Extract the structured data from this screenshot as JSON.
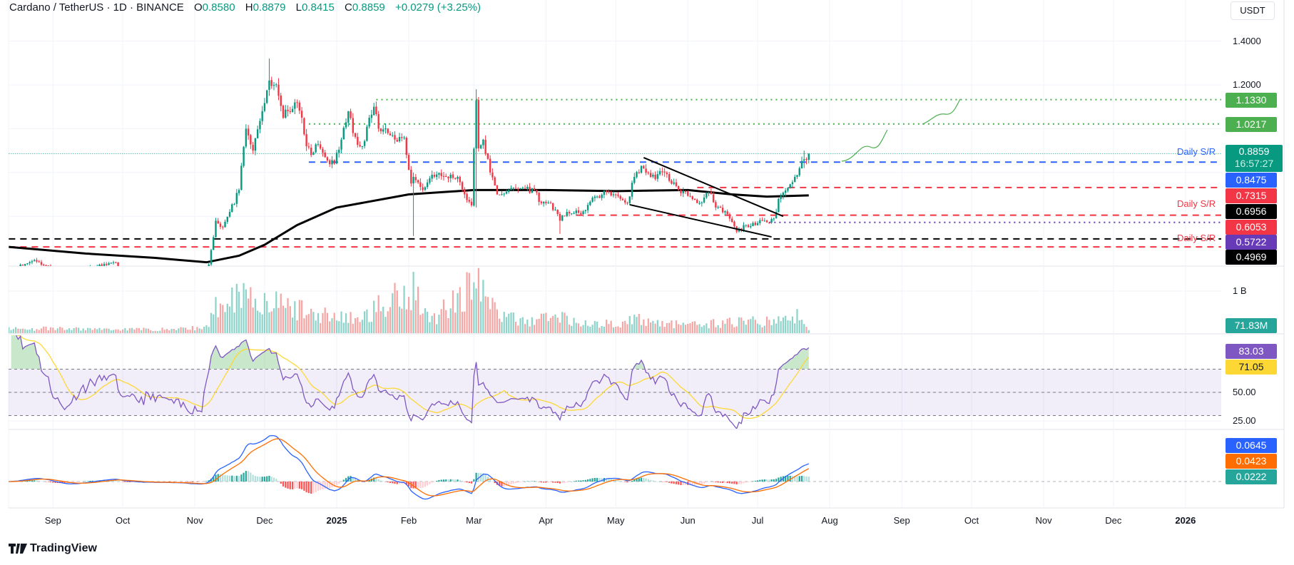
{
  "header": {
    "symbol": "Cardano / TetherUS · 1D · BINANCE",
    "o_label": "O",
    "o": "0.8580",
    "h_label": "H",
    "h": "0.8879",
    "l_label": "L",
    "l": "0.8415",
    "c_label": "C",
    "c": "0.8859",
    "change": "+0.0279 (+3.25%)"
  },
  "axis": {
    "currency": "USDT",
    "price_ticks": [
      "1.4000",
      "1.2000"
    ],
    "volume_tick": "1 B",
    "rsi_ticks": [
      "50.00",
      "25.00"
    ],
    "time_ticks": [
      {
        "label": "Sep",
        "date": "2024-09-01",
        "bold": false
      },
      {
        "label": "Oct",
        "date": "2024-10-01",
        "bold": false
      },
      {
        "label": "Nov",
        "date": "2024-11-01",
        "bold": false
      },
      {
        "label": "Dec",
        "date": "2024-12-01",
        "bold": false
      },
      {
        "label": "2025",
        "date": "2025-01-01",
        "bold": true
      },
      {
        "label": "Feb",
        "date": "2025-02-01",
        "bold": false
      },
      {
        "label": "Mar",
        "date": "2025-03-01",
        "bold": false
      },
      {
        "label": "Apr",
        "date": "2025-04-01",
        "bold": false
      },
      {
        "label": "May",
        "date": "2025-05-01",
        "bold": false
      },
      {
        "label": "Jun",
        "date": "2025-06-01",
        "bold": false
      },
      {
        "label": "Jul",
        "date": "2025-07-01",
        "bold": false
      },
      {
        "label": "Aug",
        "date": "2025-08-01",
        "bold": false
      },
      {
        "label": "Sep",
        "date": "2025-09-01",
        "bold": false
      },
      {
        "label": "Oct",
        "date": "2025-10-01",
        "bold": false
      },
      {
        "label": "Nov",
        "date": "2025-11-01",
        "bold": false
      },
      {
        "label": "Dec",
        "date": "2025-12-01",
        "bold": false
      },
      {
        "label": "2026",
        "date": "2026-01-01",
        "bold": true
      }
    ]
  },
  "price_labels": [
    {
      "value": "1.1330",
      "color": "#4caf50"
    },
    {
      "value": "1.0217",
      "color": "#4caf50"
    },
    {
      "value": "0.8475",
      "color": "#2962ff"
    },
    {
      "value": "0.7315",
      "color": "#f23645"
    },
    {
      "value": "0.6956",
      "color": "#000000"
    },
    {
      "value": "0.6053",
      "color": "#f23645"
    },
    {
      "value": "0.5722",
      "color": "#673ab7"
    },
    {
      "value": "0.4969",
      "color": "#000000"
    }
  ],
  "current_price": {
    "value": "0.8859",
    "countdown": "16:57:27",
    "color": "#089981"
  },
  "annotations": [
    {
      "text": "Daily S/R",
      "color": "#2962ff"
    },
    {
      "text": "Daily S/R",
      "color": "#f23645"
    },
    {
      "text": "Daily S/R",
      "color": "#f23645"
    }
  ],
  "indicators": {
    "volume": {
      "value": "71.83M",
      "color": "#26a69a"
    },
    "rsi": {
      "value": "83.03",
      "color": "#7e57c2"
    },
    "rsi_ma": {
      "value": "71.05",
      "color": "#fdd835"
    },
    "macd": {
      "value": "0.0645",
      "color": "#2962ff"
    },
    "signal": {
      "value": "0.0423",
      "color": "#ff6d00"
    },
    "histogram": {
      "value": "0.0222",
      "color": "#26a69a"
    }
  },
  "footer": {
    "logo": "TradingView"
  },
  "chart_data": {
    "type": "candlestick",
    "interval": "1D",
    "colors": {
      "up": "#089981",
      "down": "#f23645"
    },
    "grid_prices": [
      1.4,
      1.2,
      1.0,
      0.8,
      0.6
    ],
    "closes": [
      [
        "2024-08-13",
        0.35
      ],
      [
        "2024-08-24",
        0.4
      ],
      [
        "2024-09-06",
        0.33
      ],
      [
        "2024-09-27",
        0.39
      ],
      [
        "2024-10-01",
        0.36
      ],
      [
        "2024-10-20",
        0.35
      ],
      [
        "2024-11-04",
        0.32
      ],
      [
        "2024-11-07",
        0.38
      ],
      [
        "2024-11-10",
        0.58
      ],
      [
        "2024-11-13",
        0.55
      ],
      [
        "2024-11-16",
        0.62
      ],
      [
        "2024-11-20",
        0.72
      ],
      [
        "2024-11-23",
        1.0
      ],
      [
        "2024-11-26",
        0.9
      ],
      [
        "2024-11-30",
        1.08
      ],
      [
        "2024-12-03",
        1.22
      ],
      [
        "2024-12-05",
        1.2
      ],
      [
        "2024-12-07",
        1.15
      ],
      [
        "2024-12-09",
        1.05
      ],
      [
        "2024-12-11",
        1.08
      ],
      [
        "2024-12-14",
        1.12
      ],
      [
        "2024-12-17",
        1.05
      ],
      [
        "2024-12-19",
        0.92
      ],
      [
        "2024-12-21",
        0.88
      ],
      [
        "2024-12-24",
        0.93
      ],
      [
        "2024-12-27",
        0.87
      ],
      [
        "2024-12-31",
        0.84
      ],
      [
        "2025-01-03",
        0.95
      ],
      [
        "2025-01-06",
        1.08
      ],
      [
        "2025-01-08",
        0.98
      ],
      [
        "2025-01-12",
        0.92
      ],
      [
        "2025-01-15",
        1.05
      ],
      [
        "2025-01-17",
        1.1
      ],
      [
        "2025-01-19",
        1.0
      ],
      [
        "2025-01-23",
        0.98
      ],
      [
        "2025-01-26",
        0.95
      ],
      [
        "2025-01-30",
        0.96
      ],
      [
        "2025-02-02",
        0.75
      ],
      [
        "2025-02-03",
        0.78
      ],
      [
        "2025-02-07",
        0.72
      ],
      [
        "2025-02-11",
        0.79
      ],
      [
        "2025-02-17",
        0.78
      ],
      [
        "2025-02-22",
        0.78
      ],
      [
        "2025-02-25",
        0.7
      ],
      [
        "2025-02-28",
        0.65
      ],
      [
        "2025-03-02",
        1.13
      ],
      [
        "2025-03-03",
        0.91
      ],
      [
        "2025-03-05",
        0.95
      ],
      [
        "2025-03-08",
        0.8
      ],
      [
        "2025-03-11",
        0.7
      ],
      [
        "2025-03-16",
        0.72
      ],
      [
        "2025-03-22",
        0.73
      ],
      [
        "2025-03-27",
        0.72
      ],
      [
        "2025-03-30",
        0.66
      ],
      [
        "2025-04-03",
        0.66
      ],
      [
        "2025-04-07",
        0.58
      ],
      [
        "2025-04-10",
        0.62
      ],
      [
        "2025-04-16",
        0.61
      ],
      [
        "2025-04-22",
        0.69
      ],
      [
        "2025-04-28",
        0.71
      ],
      [
        "2025-05-03",
        0.68
      ],
      [
        "2025-05-06",
        0.66
      ],
      [
        "2025-05-09",
        0.78
      ],
      [
        "2025-05-12",
        0.83
      ],
      [
        "2025-05-16",
        0.78
      ],
      [
        "2025-05-22",
        0.8
      ],
      [
        "2025-05-28",
        0.72
      ],
      [
        "2025-06-02",
        0.69
      ],
      [
        "2025-06-06",
        0.66
      ],
      [
        "2025-06-10",
        0.71
      ],
      [
        "2025-06-13",
        0.64
      ],
      [
        "2025-06-18",
        0.61
      ],
      [
        "2025-06-22",
        0.53
      ],
      [
        "2025-06-26",
        0.56
      ],
      [
        "2025-06-30",
        0.56
      ],
      [
        "2025-07-04",
        0.58
      ],
      [
        "2025-07-08",
        0.59
      ],
      [
        "2025-07-10",
        0.68
      ],
      [
        "2025-07-14",
        0.73
      ],
      [
        "2025-07-17",
        0.78
      ],
      [
        "2025-07-19",
        0.82
      ],
      [
        "2025-07-21",
        0.86
      ],
      [
        "2025-07-22",
        0.858
      ],
      [
        "2025-07-23",
        0.8859
      ]
    ],
    "wicks": [
      [
        "2024-12-03",
        1.32,
        1.15
      ],
      [
        "2025-03-02",
        1.18,
        0.64
      ],
      [
        "2025-02-03",
        0.8,
        0.51
      ],
      [
        "2025-04-07",
        0.62,
        0.52
      ],
      [
        "2025-07-21",
        0.9,
        0.82
      ],
      [
        "2025-07-23",
        0.8879,
        0.8415
      ]
    ],
    "ma200": [
      [
        "2024-08-13",
        0.46
      ],
      [
        "2024-09-15",
        0.43
      ],
      [
        "2024-10-15",
        0.41
      ],
      [
        "2024-11-06",
        0.39
      ],
      [
        "2024-11-20",
        0.42
      ],
      [
        "2024-12-01",
        0.47
      ],
      [
        "2024-12-15",
        0.56
      ],
      [
        "2025-01-01",
        0.64
      ],
      [
        "2025-02-01",
        0.7
      ],
      [
        "2025-03-01",
        0.72
      ],
      [
        "2025-04-01",
        0.72
      ],
      [
        "2025-05-01",
        0.715
      ],
      [
        "2025-06-01",
        0.72
      ],
      [
        "2025-06-20",
        0.7
      ],
      [
        "2025-07-05",
        0.69
      ],
      [
        "2025-07-23",
        0.6956
      ]
    ],
    "volume_b": [
      [
        "2024-08-13",
        0.12
      ],
      [
        "2024-10-20",
        0.1
      ],
      [
        "2024-11-06",
        0.15
      ],
      [
        "2024-11-12",
        0.9
      ],
      [
        "2024-11-22",
        1.1
      ],
      [
        "2024-12-03",
        0.8
      ],
      [
        "2024-12-20",
        0.55
      ],
      [
        "2025-01-10",
        0.35
      ],
      [
        "2025-02-03",
        1.25
      ],
      [
        "2025-02-10",
        0.3
      ],
      [
        "2025-03-02",
        1.4
      ],
      [
        "2025-03-08",
        0.7
      ],
      [
        "2025-03-20",
        0.3
      ],
      [
        "2025-04-07",
        0.45
      ],
      [
        "2025-04-20",
        0.2
      ],
      [
        "2025-05-10",
        0.35
      ],
      [
        "2025-06-01",
        0.2
      ],
      [
        "2025-06-22",
        0.3
      ],
      [
        "2025-07-10",
        0.3
      ],
      [
        "2025-07-18",
        0.5
      ],
      [
        "2025-07-23",
        0.072
      ]
    ],
    "levels": [
      {
        "price": 1.133,
        "from": "2025-01-18",
        "style": "dotted",
        "color": "#4caf50"
      },
      {
        "price": 1.0217,
        "from": "2024-12-20",
        "style": "dotted",
        "color": "#4caf50"
      },
      {
        "price": 0.8859,
        "from": "2024-08-13",
        "style": "dotted",
        "color": "#089981"
      },
      {
        "price": 0.8475,
        "from": "2024-12-20",
        "style": "dashed",
        "color": "#2962ff"
      },
      {
        "price": 0.7315,
        "from": "2025-06-05",
        "style": "dashed",
        "color": "#f23645"
      },
      {
        "price": 0.6053,
        "from": "2025-04-14",
        "style": "dashed",
        "color": "#f23645"
      },
      {
        "price": 0.5722,
        "from": "2025-07-06",
        "style": "dotted",
        "color": "#673ab7"
      },
      {
        "price": 0.4969,
        "from": "2024-08-13",
        "style": "dashed",
        "color": "#000000"
      },
      {
        "price": 0.46,
        "from": "2024-08-13",
        "style": "dashed",
        "color": "#f23645"
      }
    ],
    "trendlines": [
      {
        "from": [
          "2025-05-13",
          0.868
        ],
        "to": [
          "2025-07-12",
          0.6
        ]
      },
      {
        "from": [
          "2025-05-07",
          0.653
        ],
        "to": [
          "2025-07-07",
          0.506
        ]
      }
    ],
    "rsi_levels": [
      70,
      50,
      30
    ]
  }
}
